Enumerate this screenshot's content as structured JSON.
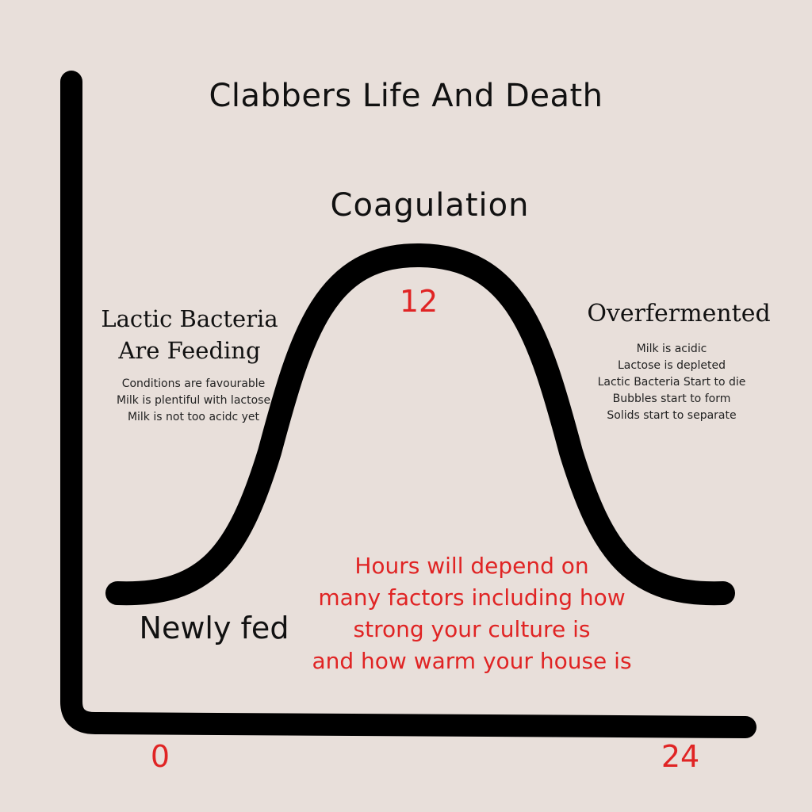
{
  "title": "Clabbers Life And Death",
  "peak": {
    "label": "Coagulation",
    "value": "12"
  },
  "left_phase": {
    "heading_lines": [
      "Lactic Bacteria",
      "Are Feeding"
    ],
    "notes": [
      "Conditions are favourable",
      "Milk is plentiful with lactose",
      "Milk is not too acidc yet"
    ]
  },
  "right_phase": {
    "heading": "Overfermented",
    "notes": [
      "Milk is acidic",
      "Lactose is depleted",
      "Lactic Bacteria Start to die",
      "Bubbles start to form",
      "Solids start to separate"
    ]
  },
  "start_label": "Newly fed",
  "note_lines": [
    "Hours will depend on",
    "many factors including how",
    "strong your culture is",
    "and how warm your house is"
  ],
  "x_axis": {
    "start": "0",
    "end": "24"
  },
  "colors": {
    "background": "#e8dfda",
    "ink": "#000000",
    "accent": "#e02424"
  }
}
